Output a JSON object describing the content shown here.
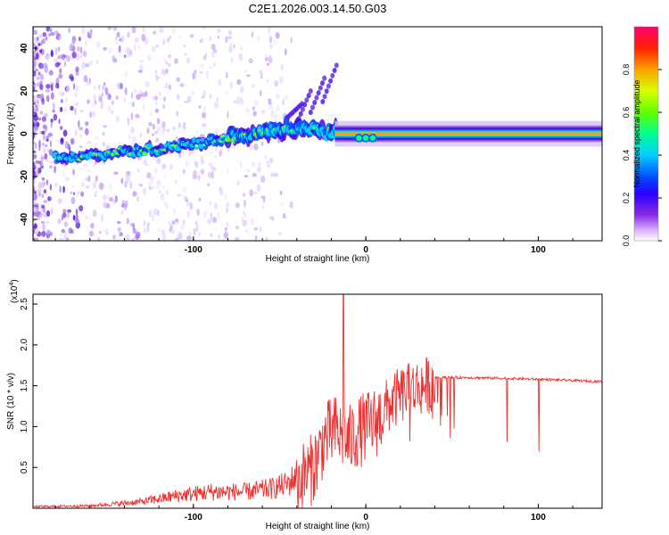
{
  "title": "C2E1.2026.003.14.50.G03",
  "chart_data": [
    {
      "type": "heatmap",
      "name": "spectrogram",
      "xlabel": "Height of straight line (km)",
      "ylabel": "Frequency (Hz)",
      "xlim": [
        -193,
        137
      ],
      "ylim": [
        -50,
        50
      ],
      "xticks": [
        -100,
        0,
        100
      ],
      "xtick_labels": [
        "-100",
        "0",
        "100"
      ],
      "yticks": [
        -40,
        -20,
        0,
        20,
        40
      ],
      "ytick_labels": [
        "-40",
        "-20",
        "0",
        "20",
        "40"
      ],
      "colorbar": {
        "label": "Normalized spectral amplitude",
        "range": [
          0,
          1
        ],
        "ticks": [
          0.0,
          0.2,
          0.4,
          0.6,
          0.8
        ],
        "tick_labels": [
          "0.0",
          "0.2",
          "0.4",
          "0.6",
          "0.8"
        ],
        "colors": [
          "#ffffff",
          "#b070ff",
          "#4b00d6",
          "#0000ff",
          "#00c8ff",
          "#00ff80",
          "#7cff00",
          "#ffff00",
          "#ff8000",
          "#ff0000",
          "#ff0080"
        ]
      },
      "ridge": {
        "description": "frequency centre of main spectral ridge vs height",
        "x": [
          -193,
          -160,
          -120,
          -100,
          -80,
          -60,
          -45,
          -30,
          -20,
          -12,
          -6,
          0,
          6,
          12,
          40,
          80,
          137
        ],
        "y": [
          -11,
          -10,
          -7,
          -5,
          -2,
          1,
          3,
          2,
          0,
          1,
          1,
          -2,
          -2,
          0,
          0,
          0,
          0
        ]
      }
    },
    {
      "type": "line",
      "name": "snr",
      "xlabel": "Height of straight line (km)",
      "ylabel": "SNR (10 * v/v)",
      "yscale_label": "(x10",
      "yscale_exp": "4",
      "yscale_close": ")",
      "xlim": [
        -193,
        137
      ],
      "ylim": [
        0,
        2.62
      ],
      "xticks": [
        -100,
        0,
        100
      ],
      "xtick_labels": [
        "-100",
        "0",
        "100"
      ],
      "yticks": [
        0.5,
        1.0,
        1.5,
        2.0,
        2.5
      ],
      "ytick_labels": [
        "0.5",
        "1.0",
        "1.5",
        "2.0",
        "2.5"
      ],
      "color": "#ee3030",
      "envelope": {
        "x": [
          -193,
          -160,
          -130,
          -110,
          -90,
          -70,
          -55,
          -45,
          -38,
          -32,
          -28,
          -24,
          -20,
          -17,
          -14,
          -10,
          -6,
          -2,
          2,
          6,
          10,
          14,
          20,
          30,
          40,
          60,
          100,
          137
        ],
        "y": [
          0.02,
          0.03,
          0.08,
          0.15,
          0.2,
          0.2,
          0.24,
          0.3,
          0.45,
          0.55,
          0.7,
          0.95,
          1.0,
          1.05,
          0.95,
          0.9,
          1.0,
          1.05,
          1.1,
          1.15,
          1.25,
          1.35,
          1.45,
          1.55,
          1.6,
          1.6,
          1.58,
          1.55
        ]
      },
      "peak": {
        "x": -13,
        "y": 2.62
      }
    }
  ]
}
